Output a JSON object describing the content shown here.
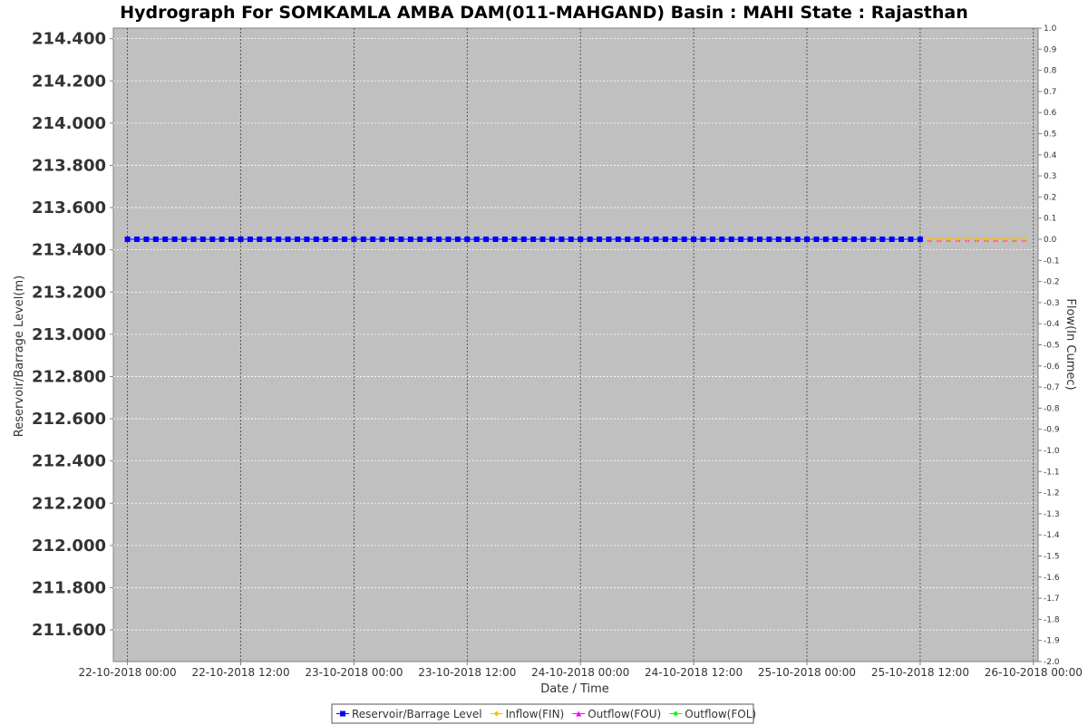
{
  "chart_data": {
    "type": "line",
    "title": "Hydrograph For SOMKAMLA AMBA DAM(011-MAHGAND) Basin : MAHI State : Rajasthan",
    "xlabel": "Date / Time",
    "ylabel_left": "Reservoir/Barrage Level(m)",
    "ylabel_right": "Flow(In Cumec)",
    "y_left_ticks": [
      "214.400",
      "214.200",
      "214.000",
      "213.800",
      "213.600",
      "213.400",
      "213.200",
      "213.000",
      "212.800",
      "212.600",
      "212.400",
      "212.200",
      "212.000",
      "211.800",
      "211.600"
    ],
    "y_right_ticks": [
      "1.0",
      "0.9",
      "0.8",
      "0.7",
      "0.6",
      "0.5",
      "0.4",
      "0.3",
      "0.2",
      "0.1",
      "0.0",
      "-0.1",
      "-0.2",
      "-0.3",
      "-0.4",
      "-0.5",
      "-0.6",
      "-0.7",
      "-0.8",
      "-0.9",
      "-1.0",
      "-1.1",
      "-1.2",
      "-1.3",
      "-1.4",
      "-1.5",
      "-1.6",
      "-1.7",
      "-1.8",
      "-1.9",
      "-2.0"
    ],
    "x_ticks": [
      "22-10-2018 00:00",
      "22-10-2018 12:00",
      "23-10-2018 00:00",
      "23-10-2018 12:00",
      "24-10-2018 00:00",
      "24-10-2018 12:00",
      "25-10-2018 00:00",
      "25-10-2018 12:00",
      "26-10-2018 00:00"
    ],
    "x_range_hours": [
      -1.5,
      96.5
    ],
    "ylim_left": [
      211.45,
      214.45
    ],
    "ylim_right": [
      -2.0,
      1.0
    ],
    "grid": true,
    "legend_position": "bottom-center",
    "series": [
      {
        "name": "Reservoir/Barrage Level",
        "axis": "left",
        "marker": "square",
        "color": "#0000ff",
        "start_hour": 0,
        "end_hour": 84,
        "step_hours": 1,
        "value": 213.45
      },
      {
        "name": "Inflow(FIN)",
        "axis": "right",
        "marker": "diamond",
        "color": "#ffc000",
        "start_hour": 0,
        "end_hour": 95,
        "step_hours": 1,
        "value": 0.0
      },
      {
        "name": "Outflow(FOU)",
        "axis": "right",
        "marker": "triangle",
        "color": "#ff00ff",
        "start_hour": 0,
        "end_hour": 95,
        "step_hours": 1,
        "value": 0.0
      },
      {
        "name": "Outflow(FOL)",
        "axis": "right",
        "marker": "diamond",
        "color": "#00ff00",
        "start_hour": 0,
        "end_hour": 95,
        "step_hours": 1,
        "value": 0.0
      }
    ]
  }
}
